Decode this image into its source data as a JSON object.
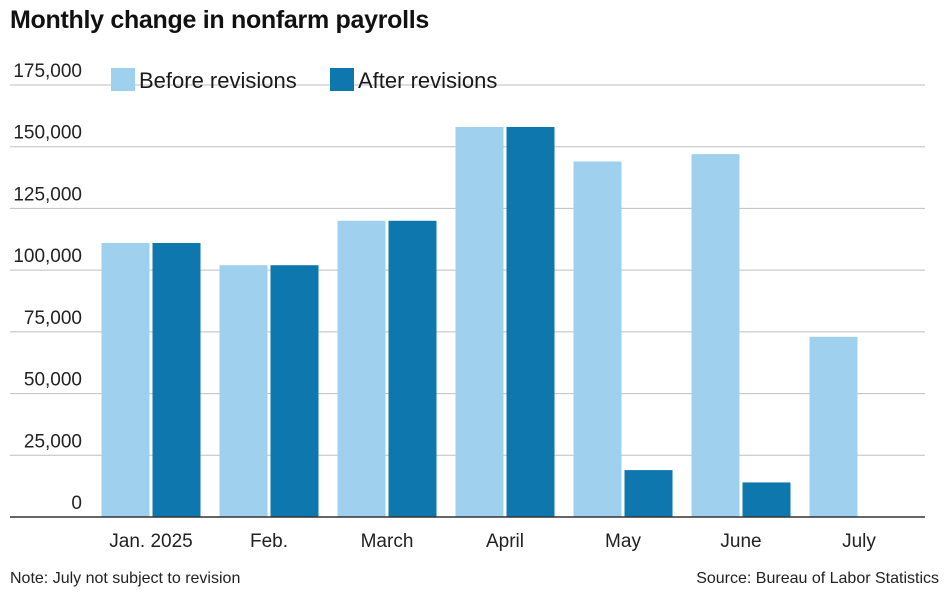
{
  "title": "Monthly change in nonfarm payrolls",
  "note": "Note: July not subject to revision",
  "source": "Source: Bureau of Labor Statistics",
  "colors": {
    "before": "#9fd1ef",
    "after": "#0e77ad",
    "grid": "#bfbfbf",
    "axis": "#333333"
  },
  "chart_data": {
    "type": "bar",
    "title": "Monthly change in nonfarm payrolls",
    "categories": [
      "Jan. 2025",
      "Feb.",
      "March",
      "April",
      "May",
      "June",
      "July"
    ],
    "series": [
      {
        "name": "Before revisions",
        "values": [
          111000,
          102000,
          120000,
          158000,
          144000,
          147000,
          73000
        ]
      },
      {
        "name": "After revisions",
        "values": [
          111000,
          102000,
          120000,
          158000,
          19000,
          14000,
          null
        ]
      }
    ],
    "ylim": [
      0,
      175000
    ],
    "yticks": [
      "0",
      "25,000",
      "50,000",
      "75,000",
      "100,000",
      "125,000",
      "150,000",
      "175,000"
    ],
    "ytick_values": [
      0,
      25000,
      50000,
      75000,
      100000,
      125000,
      150000,
      175000
    ],
    "xlabel": "",
    "ylabel": "",
    "grid": true,
    "legend": "top-left"
  }
}
